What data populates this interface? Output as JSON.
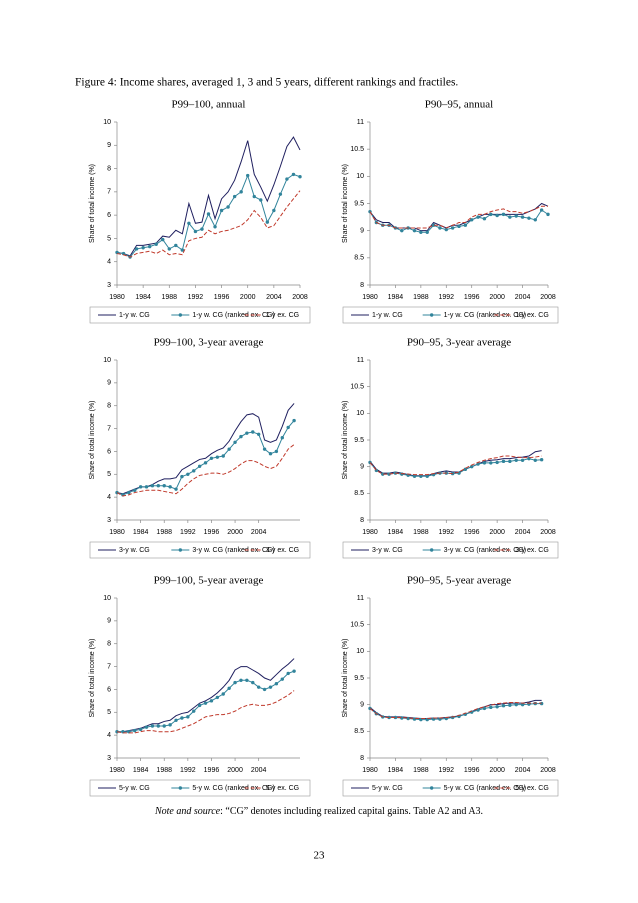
{
  "caption": "Figure 4: Income shares, averaged 1, 3 and 5 years, different rankings and fractiles.",
  "note_label": "Note and source",
  "note": ": “CG” denotes including realized capital gains. Table A2 and A3.",
  "page_number": "23",
  "chart_data": [
    {
      "type": "line",
      "title": "P99–100, annual",
      "ylabel": "Share of total income (%)",
      "x": [
        1980,
        1981,
        1982,
        1983,
        1984,
        1985,
        1986,
        1987,
        1988,
        1989,
        1990,
        1991,
        1992,
        1993,
        1994,
        1995,
        1996,
        1997,
        1998,
        1999,
        2000,
        2001,
        2002,
        2003,
        2004,
        2005,
        2006,
        2007,
        2008
      ],
      "xlim": [
        1980,
        2008
      ],
      "xticks": [
        1980,
        1984,
        1988,
        1992,
        1996,
        2000,
        2004,
        2008
      ],
      "ylim": [
        3,
        10
      ],
      "yticks": [
        3,
        4,
        5,
        6,
        7,
        8,
        9,
        10
      ],
      "series": [
        {
          "name": "1-y w. CG",
          "color": "#1f1f5f",
          "values": [
            4.4,
            4.35,
            4.25,
            4.7,
            4.7,
            4.75,
            4.8,
            5.1,
            5.05,
            5.35,
            5.2,
            6.5,
            5.65,
            5.7,
            6.85,
            5.85,
            6.7,
            7.0,
            7.5,
            8.3,
            9.2,
            7.75,
            7.2,
            6.6,
            7.3,
            8.1,
            8.95,
            9.35,
            8.8
          ]
        },
        {
          "name": "1-y w. CG (ranked ex. CG)",
          "color": "#31849b",
          "marker": "circle",
          "values": [
            4.4,
            4.35,
            4.2,
            4.55,
            4.6,
            4.65,
            4.75,
            4.95,
            4.55,
            4.7,
            4.5,
            5.65,
            5.3,
            5.4,
            6.05,
            5.5,
            6.2,
            6.35,
            6.8,
            7.0,
            7.7,
            6.8,
            6.65,
            5.7,
            6.2,
            6.9,
            7.55,
            7.75,
            7.65
          ]
        },
        {
          "name": "1-y ex. CG",
          "color": "#c0392b",
          "dash": true,
          "values": [
            4.35,
            4.3,
            4.2,
            4.35,
            4.4,
            4.45,
            4.35,
            4.5,
            4.3,
            4.35,
            4.3,
            4.9,
            5.0,
            5.05,
            5.35,
            5.2,
            5.3,
            5.35,
            5.45,
            5.55,
            5.8,
            6.2,
            5.9,
            5.45,
            5.55,
            5.95,
            6.35,
            6.7,
            7.05
          ]
        }
      ]
    },
    {
      "type": "line",
      "title": "P90–95, annual",
      "ylabel": "Share of total income (%)",
      "x": [
        1980,
        1981,
        1982,
        1983,
        1984,
        1985,
        1986,
        1987,
        1988,
        1989,
        1990,
        1991,
        1992,
        1993,
        1994,
        1995,
        1996,
        1997,
        1998,
        1999,
        2000,
        2001,
        2002,
        2003,
        2004,
        2005,
        2006,
        2007,
        2008
      ],
      "xlim": [
        1980,
        2008
      ],
      "xticks": [
        1980,
        1984,
        1988,
        1992,
        1996,
        2000,
        2004,
        2008
      ],
      "ylim": [
        8,
        11
      ],
      "yticks": [
        8,
        8.5,
        9,
        9.5,
        10,
        10.5,
        11
      ],
      "series": [
        {
          "name": "1-y w. CG",
          "color": "#1f1f5f",
          "values": [
            9.35,
            9.2,
            9.15,
            9.15,
            9.05,
            9.05,
            9.05,
            9.05,
            9.0,
            9.0,
            9.15,
            9.1,
            9.05,
            9.1,
            9.1,
            9.15,
            9.2,
            9.25,
            9.3,
            9.3,
            9.3,
            9.3,
            9.3,
            9.3,
            9.3,
            9.35,
            9.4,
            9.5,
            9.45
          ]
        },
        {
          "name": "1-y w. CG (ranked ex. CG)",
          "color": "#31849b",
          "marker": "circle",
          "values": [
            9.35,
            9.15,
            9.1,
            9.1,
            9.05,
            9.0,
            9.05,
            9.0,
            8.97,
            8.97,
            9.1,
            9.05,
            9.02,
            9.05,
            9.08,
            9.1,
            9.2,
            9.25,
            9.22,
            9.3,
            9.28,
            9.3,
            9.25,
            9.27,
            9.25,
            9.23,
            9.2,
            9.38,
            9.3
          ]
        },
        {
          "name": "1-y ex. CG",
          "color": "#c0392b",
          "dash": true,
          "values": [
            9.35,
            9.15,
            9.1,
            9.1,
            9.05,
            9.05,
            9.05,
            9.05,
            9.05,
            9.05,
            9.1,
            9.1,
            9.05,
            9.1,
            9.15,
            9.15,
            9.25,
            9.3,
            9.3,
            9.35,
            9.38,
            9.4,
            9.35,
            9.35,
            9.32,
            9.35,
            9.4,
            9.45,
            9.45
          ]
        }
      ]
    },
    {
      "type": "line",
      "title": "P99–100, 3-year average",
      "ylabel": "Share of total income (%)",
      "x": [
        1980,
        1981,
        1982,
        1983,
        1984,
        1985,
        1986,
        1987,
        1988,
        1989,
        1990,
        1991,
        1992,
        1993,
        1994,
        1995,
        1996,
        1997,
        1998,
        1999,
        2000,
        2001,
        2002,
        2003,
        2004,
        2005,
        2006,
        2007,
        2008,
        2009,
        2010
      ],
      "xlim": [
        1980,
        2011
      ],
      "xticks": [
        1980,
        1984,
        1988,
        1992,
        1996,
        2000,
        2004
      ],
      "ylim": [
        3,
        10
      ],
      "yticks": [
        3,
        4,
        5,
        6,
        7,
        8,
        9,
        10
      ],
      "series": [
        {
          "name": "3-y w. CG",
          "color": "#1f1f5f",
          "values": [
            4.2,
            4.15,
            4.25,
            4.35,
            4.45,
            4.45,
            4.55,
            4.7,
            4.8,
            4.8,
            4.85,
            5.2,
            5.35,
            5.5,
            5.65,
            5.7,
            5.9,
            6.05,
            6.15,
            6.45,
            6.9,
            7.3,
            7.6,
            7.65,
            7.5,
            6.5,
            6.4,
            6.5,
            7.1,
            7.8,
            8.1
          ]
        },
        {
          "name": "3-y w. CG (ranked ex. CG)",
          "color": "#31849b",
          "marker": "circle",
          "values": [
            4.2,
            4.1,
            4.2,
            4.3,
            4.45,
            4.45,
            4.5,
            4.5,
            4.5,
            4.45,
            4.35,
            4.9,
            5.0,
            5.15,
            5.35,
            5.5,
            5.7,
            5.75,
            5.8,
            6.1,
            6.4,
            6.65,
            6.8,
            6.85,
            6.75,
            6.1,
            5.9,
            6.0,
            6.6,
            7.05,
            7.35
          ]
        },
        {
          "name": "3-y ex. CG",
          "color": "#c0392b",
          "dash": true,
          "values": [
            4.2,
            4.05,
            4.1,
            4.2,
            4.25,
            4.3,
            4.3,
            4.3,
            4.25,
            4.2,
            4.15,
            4.35,
            4.6,
            4.8,
            4.95,
            5.0,
            5.05,
            5.05,
            5.0,
            5.1,
            5.25,
            5.45,
            5.6,
            5.6,
            5.5,
            5.35,
            5.25,
            5.35,
            5.7,
            6.1,
            6.3
          ]
        }
      ]
    },
    {
      "type": "line",
      "title": "P90–95, 3-year average",
      "ylabel": "Share of total income (%)",
      "x": [
        1980,
        1981,
        1982,
        1983,
        1984,
        1985,
        1986,
        1987,
        1988,
        1989,
        1990,
        1991,
        1992,
        1993,
        1994,
        1995,
        1996,
        1997,
        1998,
        1999,
        2000,
        2001,
        2002,
        2003,
        2004,
        2005,
        2006,
        2007
      ],
      "xlim": [
        1980,
        2008
      ],
      "xticks": [
        1980,
        1984,
        1988,
        1992,
        1996,
        2000,
        2004,
        2008
      ],
      "ylim": [
        8,
        11
      ],
      "yticks": [
        8,
        8.5,
        9,
        9.5,
        10,
        10.5,
        11
      ],
      "series": [
        {
          "name": "3-y w. CG",
          "color": "#1f1f5f",
          "values": [
            9.1,
            8.95,
            8.88,
            8.88,
            8.9,
            8.88,
            8.85,
            8.83,
            8.83,
            8.83,
            8.87,
            8.9,
            8.92,
            8.9,
            8.9,
            8.95,
            9.0,
            9.05,
            9.1,
            9.12,
            9.13,
            9.15,
            9.15,
            9.17,
            9.18,
            9.2,
            9.28,
            9.3
          ]
        },
        {
          "name": "3-y w. CG (ranked ex. CG)",
          "color": "#31849b",
          "marker": "circle",
          "values": [
            9.08,
            8.93,
            8.86,
            8.86,
            8.88,
            8.86,
            8.84,
            8.82,
            8.82,
            8.82,
            8.85,
            8.88,
            8.88,
            8.87,
            8.88,
            8.95,
            9.0,
            9.05,
            9.07,
            9.07,
            9.08,
            9.1,
            9.1,
            9.12,
            9.12,
            9.15,
            9.12,
            9.13
          ]
        },
        {
          "name": "3-y ex. CG",
          "color": "#c0392b",
          "dash": true,
          "values": [
            9.08,
            8.93,
            8.86,
            8.86,
            8.88,
            8.87,
            8.86,
            8.85,
            8.85,
            8.85,
            8.87,
            8.88,
            8.88,
            8.87,
            8.9,
            8.97,
            9.03,
            9.08,
            9.12,
            9.15,
            9.17,
            9.2,
            9.2,
            9.18,
            9.17,
            9.17,
            9.18,
            9.2
          ]
        }
      ]
    },
    {
      "type": "line",
      "title": "P99–100, 5-year average",
      "ylabel": "Share of total income (%)",
      "x": [
        1980,
        1981,
        1982,
        1983,
        1984,
        1985,
        1986,
        1987,
        1988,
        1989,
        1990,
        1991,
        1992,
        1993,
        1994,
        1995,
        1996,
        1997,
        1998,
        1999,
        2000,
        2001,
        2002,
        2003,
        2004,
        2005,
        2006,
        2007,
        2008,
        2009,
        2010
      ],
      "xlim": [
        1980,
        2011
      ],
      "xticks": [
        1980,
        1984,
        1988,
        1992,
        1996,
        2000,
        2004
      ],
      "ylim": [
        3,
        10
      ],
      "yticks": [
        3,
        4,
        5,
        6,
        7,
        8,
        9,
        10
      ],
      "series": [
        {
          "name": "5-y w. CG",
          "color": "#1f1f5f",
          "values": [
            4.15,
            4.15,
            4.2,
            4.25,
            4.3,
            4.4,
            4.5,
            4.5,
            4.6,
            4.65,
            4.85,
            4.95,
            5.0,
            5.2,
            5.4,
            5.5,
            5.65,
            5.85,
            6.1,
            6.4,
            6.85,
            7.0,
            7.0,
            6.85,
            6.7,
            6.5,
            6.4,
            6.65,
            6.9,
            7.1,
            7.35
          ]
        },
        {
          "name": "5-y w. CG (ranked ex. CG)",
          "color": "#31849b",
          "marker": "circle",
          "values": [
            4.15,
            4.15,
            4.15,
            4.2,
            4.25,
            4.35,
            4.4,
            4.4,
            4.4,
            4.45,
            4.65,
            4.75,
            4.8,
            5.05,
            5.3,
            5.4,
            5.5,
            5.65,
            5.8,
            6.05,
            6.3,
            6.4,
            6.4,
            6.3,
            6.1,
            6.0,
            6.1,
            6.25,
            6.45,
            6.7,
            6.8
          ]
        },
        {
          "name": "5-y ex. CG",
          "color": "#c0392b",
          "dash": true,
          "values": [
            4.15,
            4.1,
            4.1,
            4.1,
            4.15,
            4.2,
            4.2,
            4.15,
            4.15,
            4.15,
            4.2,
            4.3,
            4.4,
            4.5,
            4.65,
            4.8,
            4.85,
            4.9,
            4.9,
            4.95,
            5.05,
            5.2,
            5.3,
            5.35,
            5.3,
            5.3,
            5.35,
            5.45,
            5.6,
            5.75,
            5.95
          ]
        }
      ]
    },
    {
      "type": "line",
      "title": "P90–95, 5-year average",
      "ylabel": "Share of total income (%)",
      "x": [
        1980,
        1981,
        1982,
        1983,
        1984,
        1985,
        1986,
        1987,
        1988,
        1989,
        1990,
        1991,
        1992,
        1993,
        1994,
        1995,
        1996,
        1997,
        1998,
        1999,
        2000,
        2001,
        2002,
        2003,
        2004,
        2005,
        2006,
        2007
      ],
      "xlim": [
        1980,
        2008
      ],
      "xticks": [
        1980,
        1984,
        1988,
        1992,
        1996,
        2000,
        2004,
        2008
      ],
      "ylim": [
        8,
        11
      ],
      "yticks": [
        8,
        8.5,
        9,
        9.5,
        10,
        10.5,
        11
      ],
      "series": [
        {
          "name": "5-y w. CG",
          "color": "#1f1f5f",
          "values": [
            8.95,
            8.85,
            8.78,
            8.77,
            8.77,
            8.77,
            8.76,
            8.75,
            8.74,
            8.74,
            8.75,
            8.75,
            8.76,
            8.77,
            8.79,
            8.82,
            8.87,
            8.92,
            8.96,
            9.0,
            9.0,
            9.02,
            9.03,
            9.03,
            9.03,
            9.05,
            9.08,
            9.08
          ]
        },
        {
          "name": "5-y w. CG (ranked ex. CG)",
          "color": "#31849b",
          "marker": "circle",
          "values": [
            8.93,
            8.83,
            8.77,
            8.76,
            8.76,
            8.75,
            8.74,
            8.73,
            8.72,
            8.72,
            8.73,
            8.73,
            8.74,
            8.76,
            8.78,
            8.82,
            8.86,
            8.9,
            8.93,
            8.95,
            8.96,
            8.98,
            8.99,
            9.0,
            9.0,
            9.01,
            9.02,
            9.02
          ]
        },
        {
          "name": "5-y ex. CG",
          "color": "#c0392b",
          "dash": true,
          "values": [
            8.93,
            8.83,
            8.77,
            8.76,
            8.76,
            8.76,
            8.75,
            8.74,
            8.74,
            8.74,
            8.75,
            8.75,
            8.76,
            8.77,
            8.8,
            8.84,
            8.88,
            8.93,
            8.96,
            8.99,
            9.02,
            9.03,
            9.04,
            9.04,
            9.03,
            9.03,
            9.03,
            9.03
          ]
        }
      ]
    }
  ]
}
